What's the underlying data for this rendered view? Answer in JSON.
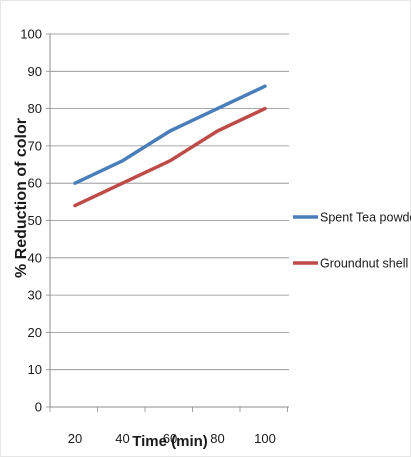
{
  "chart_data": {
    "type": "line",
    "title": "",
    "xlabel": "Time (min)",
    "ylabel": "% Reduction of color",
    "x": [
      20,
      40,
      60,
      80,
      100
    ],
    "x_ticks": [
      "20",
      "40",
      "60",
      "80",
      "100"
    ],
    "y_ticks": [
      "0",
      "10",
      "20",
      "30",
      "40",
      "50",
      "60",
      "70",
      "80",
      "90",
      "100"
    ],
    "ylim": [
      0,
      100
    ],
    "grid": "horizontal",
    "legend_position": "right",
    "series": [
      {
        "name": "Spent Tea powder",
        "color": "#4a7ebb",
        "values": [
          60,
          66,
          74,
          80,
          86
        ]
      },
      {
        "name": "Groundnut shell powde",
        "color": "#be4b48",
        "values": [
          54,
          60,
          66,
          74,
          80
        ]
      }
    ]
  }
}
